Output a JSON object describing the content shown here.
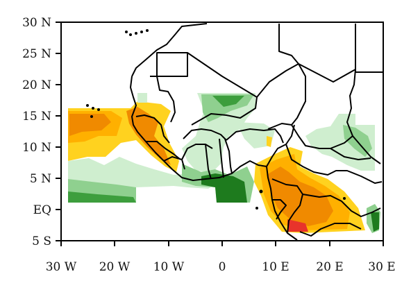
{
  "map": {
    "y_axis_labels": [
      "30 N",
      "25 N",
      "20 N",
      "15 N",
      "10 N",
      "5 N",
      "EQ",
      "5 S"
    ],
    "x_axis_labels": [
      "30 W",
      "20 W",
      "10 W",
      "0",
      "10 E",
      "20 E",
      "30 E"
    ],
    "lon_range": [
      -30,
      30
    ],
    "lat_range": [
      -5,
      30
    ],
    "colors": {
      "green_dark": "#1e7b1e",
      "green_mid": "#3d9e3d",
      "green_light": "#8fd08f",
      "green_pale": "#cfeecf",
      "yellow": "#ffd21f",
      "orange_light": "#ffb000",
      "orange": "#f08a00",
      "red": "#e8332b"
    }
  }
}
